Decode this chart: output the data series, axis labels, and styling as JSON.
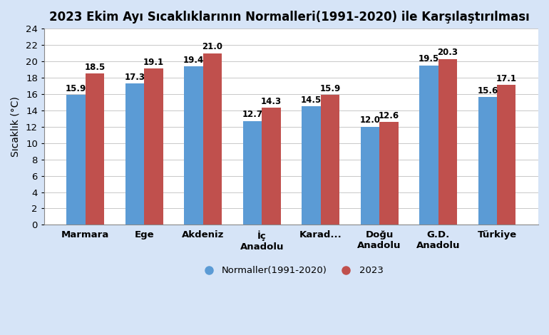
{
  "title": "2023 Ekim Ayı Sıcaklıklarının Normalleri(1991-2020) ile Karşılaştırılması",
  "categories_line1": [
    "Marmara",
    "Ege",
    "Akdeniz",
    "İç",
    "Karad...",
    "Doğu",
    "G.D.",
    "Türkiye"
  ],
  "categories_line2": [
    "",
    "",
    "",
    "Anadolu",
    "",
    "Anadolu",
    "Anadolu",
    ""
  ],
  "normals": [
    15.9,
    17.3,
    19.4,
    12.7,
    14.5,
    12.0,
    19.5,
    15.6
  ],
  "values_2023": [
    18.5,
    19.1,
    21.0,
    14.3,
    15.9,
    12.6,
    20.3,
    17.1
  ],
  "bar_color_normal": "#5B9BD5",
  "bar_color_2023": "#C0504D",
  "background_color": "#D6E4F7",
  "plot_bg_color": "#FFFFFF",
  "ylabel": "Sıcaklık (°C)",
  "ylim": [
    0,
    24
  ],
  "yticks": [
    0,
    2,
    4,
    6,
    8,
    10,
    12,
    14,
    16,
    18,
    20,
    22,
    24
  ],
  "legend_normal": "Normaller(1991-2020)",
  "legend_2023": "2023",
  "bar_width": 0.32,
  "title_fontsize": 12,
  "label_fontsize": 10,
  "tick_fontsize": 9.5,
  "value_fontsize": 8.5,
  "grid_color": "#C8C8C8"
}
